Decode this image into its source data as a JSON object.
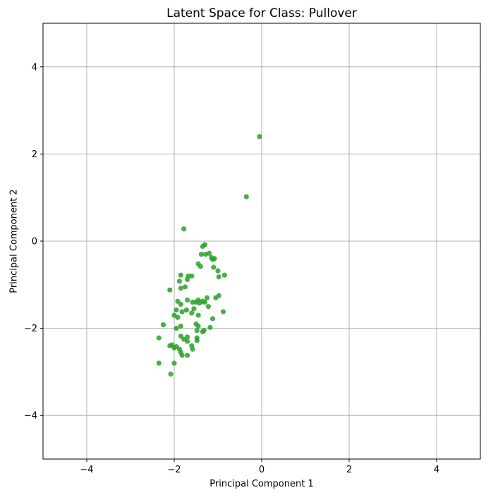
{
  "chart_data": {
    "type": "scatter",
    "title": "Latent Space for Class: Pullover",
    "xlabel": "Principal Component 1",
    "ylabel": "Principal Component 2",
    "xlim": [
      -5,
      5
    ],
    "ylim": [
      -5,
      5
    ],
    "xticks": [
      -4,
      -2,
      0,
      2,
      4
    ],
    "yticks": [
      -4,
      -2,
      0,
      2,
      4
    ],
    "xtick_labels": [
      "−4",
      "−2",
      "0",
      "2",
      "4"
    ],
    "ytick_labels": [
      "−4",
      "−2",
      "0",
      "2",
      "4"
    ],
    "grid": true,
    "marker_color": "#2ca02c",
    "points": [
      [
        -0.05,
        2.4
      ],
      [
        -0.35,
        1.02
      ],
      [
        -1.78,
        0.28
      ],
      [
        -1.3,
        -0.08
      ],
      [
        -1.35,
        -0.12
      ],
      [
        -1.38,
        -0.3
      ],
      [
        -1.28,
        -0.3
      ],
      [
        -1.2,
        -0.28
      ],
      [
        -1.15,
        -0.38
      ],
      [
        -1.12,
        -0.42
      ],
      [
        -1.08,
        -0.4
      ],
      [
        -1.1,
        -0.6
      ],
      [
        -1.45,
        -0.52
      ],
      [
        -1.4,
        -0.58
      ],
      [
        -1.0,
        -0.68
      ],
      [
        -0.98,
        -0.82
      ],
      [
        -0.85,
        -0.78
      ],
      [
        -1.85,
        -0.78
      ],
      [
        -1.68,
        -0.8
      ],
      [
        -1.6,
        -0.8
      ],
      [
        -1.7,
        -0.88
      ],
      [
        -1.88,
        -0.92
      ],
      [
        -1.75,
        -1.05
      ],
      [
        -1.85,
        -1.08
      ],
      [
        -2.1,
        -1.12
      ],
      [
        -0.98,
        -1.25
      ],
      [
        -1.05,
        -1.3
      ],
      [
        -1.25,
        -1.3
      ],
      [
        -1.45,
        -1.35
      ],
      [
        -1.5,
        -1.4
      ],
      [
        -1.35,
        -1.38
      ],
      [
        -1.42,
        -1.42
      ],
      [
        -1.3,
        -1.4
      ],
      [
        -1.58,
        -1.4
      ],
      [
        -1.7,
        -1.35
      ],
      [
        -1.92,
        -1.38
      ],
      [
        -1.85,
        -1.45
      ],
      [
        -1.22,
        -1.5
      ],
      [
        -1.55,
        -1.55
      ],
      [
        -1.72,
        -1.58
      ],
      [
        -1.95,
        -1.58
      ],
      [
        -1.82,
        -1.62
      ],
      [
        -0.88,
        -1.62
      ],
      [
        -1.6,
        -1.65
      ],
      [
        -1.45,
        -1.7
      ],
      [
        -2.0,
        -1.7
      ],
      [
        -1.92,
        -1.75
      ],
      [
        -1.12,
        -1.78
      ],
      [
        -1.5,
        -1.9
      ],
      [
        -1.45,
        -1.95
      ],
      [
        -1.85,
        -1.95
      ],
      [
        -1.95,
        -2.0
      ],
      [
        -1.18,
        -1.98
      ],
      [
        -1.48,
        -2.05
      ],
      [
        -1.35,
        -2.08
      ],
      [
        -1.32,
        -2.05
      ],
      [
        -2.25,
        -1.92
      ],
      [
        -1.7,
        -2.2
      ],
      [
        -1.78,
        -2.25
      ],
      [
        -1.85,
        -2.18
      ],
      [
        -1.7,
        -2.3
      ],
      [
        -1.48,
        -2.28
      ],
      [
        -1.48,
        -2.22
      ],
      [
        -2.35,
        -2.22
      ],
      [
        -2.1,
        -2.4
      ],
      [
        -2.05,
        -2.38
      ],
      [
        -2.0,
        -2.45
      ],
      [
        -1.95,
        -2.42
      ],
      [
        -1.6,
        -2.4
      ],
      [
        -1.88,
        -2.48
      ],
      [
        -1.85,
        -2.55
      ],
      [
        -1.58,
        -2.48
      ],
      [
        -1.7,
        -2.62
      ],
      [
        -1.82,
        -2.62
      ],
      [
        -2.35,
        -2.8
      ],
      [
        -2.0,
        -2.8
      ],
      [
        -2.08,
        -3.05
      ]
    ]
  }
}
